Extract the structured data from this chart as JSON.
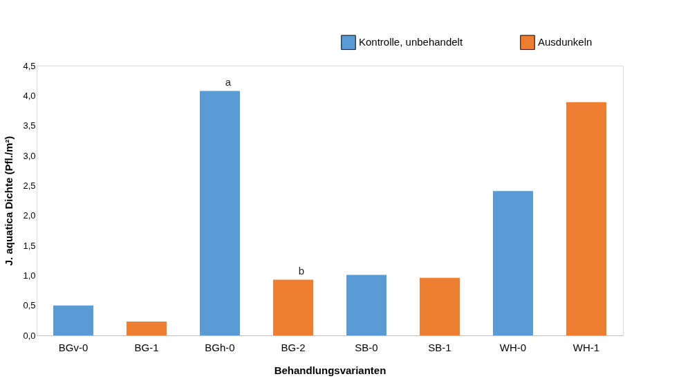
{
  "chart_data": {
    "type": "bar",
    "xlabel": "Behandlungsvarianten",
    "ylabel": "J. aquatica Dichte (Pfl./m²)",
    "categories": [
      "BGv-0",
      "BG-1",
      "BGh-0",
      "BG-2",
      "SB-0",
      "SB-1",
      "WH-0",
      "WH-1"
    ],
    "series": [
      {
        "name": "Kontrolle, unbehandelt",
        "color": "#5b9bd5",
        "values": [
          0.5,
          null,
          4.08,
          null,
          1.01,
          null,
          2.41,
          null
        ]
      },
      {
        "name": "Ausdunkeln",
        "color": "#ed7d31",
        "values": [
          null,
          0.23,
          null,
          0.93,
          null,
          0.96,
          null,
          3.89
        ]
      }
    ],
    "ylim": [
      0,
      4.5
    ],
    "yticks": [
      {
        "value": 0,
        "label": "0,0"
      },
      {
        "value": 0.5,
        "label": "0,5"
      },
      {
        "value": 1,
        "label": "1,0"
      },
      {
        "value": 1.5,
        "label": "1,5"
      },
      {
        "value": 2,
        "label": "2,0"
      },
      {
        "value": 2.5,
        "label": "2,5"
      },
      {
        "value": 3,
        "label": "3,0"
      },
      {
        "value": 3.5,
        "label": "3,5"
      },
      {
        "value": 4,
        "label": "4,0"
      },
      {
        "value": 4.5,
        "label": "4,5"
      }
    ],
    "annotations": [
      {
        "text": "a",
        "x": "BGh-0",
        "y": 4.08
      },
      {
        "text": "b",
        "x": "BG-2",
        "y": 0.93
      }
    ],
    "grid": false,
    "legend": "top right"
  }
}
